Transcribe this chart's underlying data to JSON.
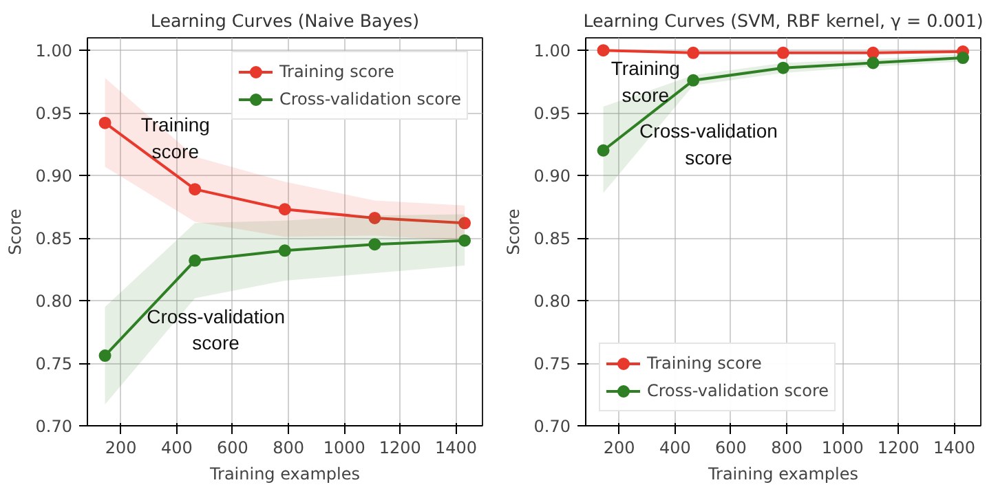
{
  "chart_data": [
    {
      "type": "line",
      "title": "Learning Curves (Naive Bayes)",
      "xlabel": "Training examples",
      "ylabel": "Score",
      "x": [
        143,
        465,
        787,
        1109,
        1431
      ],
      "xlim": [
        80,
        1495
      ],
      "xticks": [
        200,
        400,
        600,
        800,
        1000,
        1200,
        1400
      ],
      "ylim": [
        0.7,
        1.01
      ],
      "yticks": [
        {
          "value": 0.7,
          "label": "0.70"
        },
        {
          "value": 0.75,
          "label": "0.75"
        },
        {
          "value": 0.8,
          "label": "0.80"
        },
        {
          "value": 0.85,
          "label": "0.85"
        },
        {
          "value": 0.9,
          "label": "0.90"
        },
        {
          "value": 0.95,
          "label": "0.95"
        },
        {
          "value": 1.0,
          "label": "1.00"
        }
      ],
      "grid": true,
      "legend": "top right",
      "marker": "circle",
      "series": [
        {
          "name": "Training score",
          "color": "#e8392d",
          "values": [
            0.942,
            0.889,
            0.873,
            0.866,
            0.862
          ],
          "lower": [
            0.907,
            0.863,
            0.851,
            0.852,
            0.848
          ],
          "upper": [
            0.978,
            0.915,
            0.895,
            0.88,
            0.876
          ]
        },
        {
          "name": "Cross-validation score",
          "color": "#2f7f24",
          "values": [
            0.756,
            0.832,
            0.84,
            0.845,
            0.848
          ],
          "lower": [
            0.717,
            0.802,
            0.816,
            0.822,
            0.828
          ],
          "upper": [
            0.795,
            0.862,
            0.864,
            0.868,
            0.869
          ]
        }
      ],
      "annotations": [
        "Training\nscore",
        "Cross-validation\nscore"
      ]
    },
    {
      "type": "line",
      "title": "Learning Curves (SVM, RBF kernel, γ = 0.001)",
      "xlabel": "Training examples",
      "ylabel": "Score",
      "x": [
        143,
        465,
        787,
        1109,
        1431
      ],
      "xlim": [
        80,
        1495
      ],
      "xticks": [
        200,
        400,
        600,
        800,
        1000,
        1200,
        1400
      ],
      "ylim": [
        0.7,
        1.01
      ],
      "yticks": [
        {
          "value": 0.7,
          "label": "0.70"
        },
        {
          "value": 0.75,
          "label": "0.75"
        },
        {
          "value": 0.8,
          "label": "0.80"
        },
        {
          "value": 0.85,
          "label": "0.85"
        },
        {
          "value": 0.9,
          "label": "0.90"
        },
        {
          "value": 0.95,
          "label": "0.95"
        },
        {
          "value": 1.0,
          "label": "1.00"
        }
      ],
      "grid": true,
      "legend": "bottom left",
      "marker": "circle",
      "series": [
        {
          "name": "Training score",
          "color": "#e8392d",
          "values": [
            1.0,
            0.998,
            0.998,
            0.998,
            0.999
          ]
        },
        {
          "name": "Cross-validation score",
          "color": "#2f7f24",
          "values": [
            0.92,
            0.976,
            0.986,
            0.99,
            0.994
          ],
          "lower": [
            0.886,
            0.972,
            0.982,
            0.987,
            0.991
          ],
          "upper": [
            0.955,
            0.98,
            0.99,
            0.993,
            0.997
          ]
        }
      ],
      "annotations": [
        "Training\nscore",
        "Cross-validation\nscore"
      ]
    }
  ]
}
